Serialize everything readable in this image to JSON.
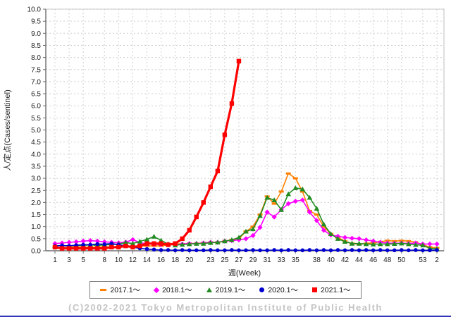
{
  "page": {
    "footer": "(C)2002-2021 Tokyo Metropolitan Institute of Public Health",
    "bottom_bar_color": "#3434bb",
    "background": "#ffffff"
  },
  "chart_data": {
    "type": "line",
    "title": "",
    "xlabel": "週(Week)",
    "ylabel": "人/定点(Cases/sentinel)",
    "ylim": [
      0,
      10
    ],
    "y_tick_step": 0.5,
    "grid": true,
    "legend_position": "bottom",
    "x_index_count": 55,
    "x_ticks": [
      {
        "label": "1",
        "index": 0
      },
      {
        "label": "3",
        "index": 2
      },
      {
        "label": "5",
        "index": 4
      },
      {
        "label": "8",
        "index": 7
      },
      {
        "label": "10",
        "index": 9
      },
      {
        "label": "12",
        "index": 11
      },
      {
        "label": "14",
        "index": 13
      },
      {
        "label": "16",
        "index": 15
      },
      {
        "label": "18",
        "index": 17
      },
      {
        "label": "20",
        "index": 19
      },
      {
        "label": "23",
        "index": 22
      },
      {
        "label": "25",
        "index": 24
      },
      {
        "label": "27",
        "index": 26
      },
      {
        "label": "29",
        "index": 28
      },
      {
        "label": "31",
        "index": 30
      },
      {
        "label": "33",
        "index": 32
      },
      {
        "label": "35",
        "index": 34
      },
      {
        "label": "38",
        "index": 37
      },
      {
        "label": "40",
        "index": 39
      },
      {
        "label": "42",
        "index": 41
      },
      {
        "label": "44",
        "index": 43
      },
      {
        "label": "46",
        "index": 45
      },
      {
        "label": "48",
        "index": 47
      },
      {
        "label": "50",
        "index": 49
      },
      {
        "label": "53",
        "index": 52
      },
      {
        "label": "2",
        "index": 54
      }
    ],
    "series": [
      {
        "name": "2017.1～",
        "color": "#ff8000",
        "marker": "dash",
        "line_width": 1.6,
        "values": [
          0.15,
          0.13,
          0.15,
          0.17,
          0.15,
          0.15,
          0.15,
          0.17,
          0.15,
          0.17,
          0.2,
          0.17,
          0.2,
          0.2,
          0.2,
          0.2,
          0.25,
          0.3,
          0.28,
          0.3,
          0.3,
          0.33,
          0.35,
          0.35,
          0.4,
          0.45,
          0.5,
          0.8,
          1.0,
          1.5,
          2.25,
          1.95,
          2.45,
          3.2,
          3.0,
          2.45,
          1.65,
          1.5,
          1.0,
          0.7,
          0.55,
          0.4,
          0.3,
          0.27,
          0.3,
          0.33,
          0.37,
          0.42,
          0.4,
          0.42,
          0.4,
          0.35,
          0.25,
          0.15,
          0.12
        ]
      },
      {
        "name": "2018.1～",
        "color": "#ff00ff",
        "marker": "diamond",
        "line_width": 1.6,
        "values": [
          0.3,
          0.32,
          0.35,
          0.37,
          0.4,
          0.42,
          0.4,
          0.37,
          0.35,
          0.33,
          0.36,
          0.46,
          0.34,
          0.28,
          0.27,
          0.25,
          0.27,
          0.25,
          0.28,
          0.3,
          0.3,
          0.32,
          0.35,
          0.35,
          0.4,
          0.42,
          0.45,
          0.5,
          0.63,
          0.97,
          1.6,
          1.4,
          1.7,
          1.95,
          2.05,
          2.1,
          1.6,
          1.25,
          0.85,
          0.65,
          0.6,
          0.55,
          0.52,
          0.5,
          0.45,
          0.4,
          0.35,
          0.32,
          0.31,
          0.32,
          0.3,
          0.32,
          0.28,
          0.28,
          0.28
        ]
      },
      {
        "name": "2019.1～",
        "color": "#228b22",
        "marker": "triangle",
        "line_width": 1.6,
        "values": [
          0.2,
          0.22,
          0.2,
          0.23,
          0.22,
          0.25,
          0.22,
          0.25,
          0.25,
          0.28,
          0.34,
          0.3,
          0.39,
          0.47,
          0.59,
          0.43,
          0.28,
          0.23,
          0.26,
          0.28,
          0.3,
          0.3,
          0.33,
          0.35,
          0.4,
          0.45,
          0.55,
          0.8,
          0.9,
          1.45,
          2.2,
          2.1,
          1.7,
          2.35,
          2.6,
          2.55,
          2.2,
          1.75,
          1.1,
          0.7,
          0.5,
          0.38,
          0.3,
          0.3,
          0.28,
          0.27,
          0.28,
          0.28,
          0.29,
          0.31,
          0.28,
          0.25,
          0.23,
          0.1,
          0.08
        ]
      },
      {
        "name": "2020.1～",
        "color": "#0000cd",
        "marker": "circle",
        "line_width": 1.6,
        "values": [
          0.2,
          0.22,
          0.2,
          0.23,
          0.25,
          0.25,
          0.28,
          0.27,
          0.3,
          0.25,
          0.2,
          0.15,
          0.1,
          0.07,
          0.05,
          0.03,
          0.03,
          0.02,
          0.03,
          0.02,
          0.02,
          0.02,
          0.03,
          0.02,
          0.02,
          0.03,
          0.02,
          0.02,
          0.03,
          0.02,
          0.02,
          0.03,
          0.02,
          0.03,
          0.02,
          0.02,
          0.03,
          0.02,
          0.03,
          0.02,
          0.03,
          0.02,
          0.03,
          0.02,
          0.03,
          0.02,
          0.03,
          0.02,
          0.02,
          0.03,
          0.02,
          0.03,
          0.02,
          0.02,
          0.03
        ]
      },
      {
        "name": "2021.1～",
        "color": "#ff0000",
        "marker": "square",
        "line_width": 3.2,
        "values": [
          0.15,
          0.1,
          0.1,
          0.1,
          0.1,
          0.1,
          0.1,
          0.1,
          0.15,
          0.15,
          0.2,
          0.15,
          0.2,
          0.3,
          0.3,
          0.3,
          0.25,
          0.3,
          0.5,
          0.85,
          1.4,
          2.0,
          2.65,
          3.3,
          4.8,
          6.1,
          7.85
        ]
      }
    ]
  }
}
